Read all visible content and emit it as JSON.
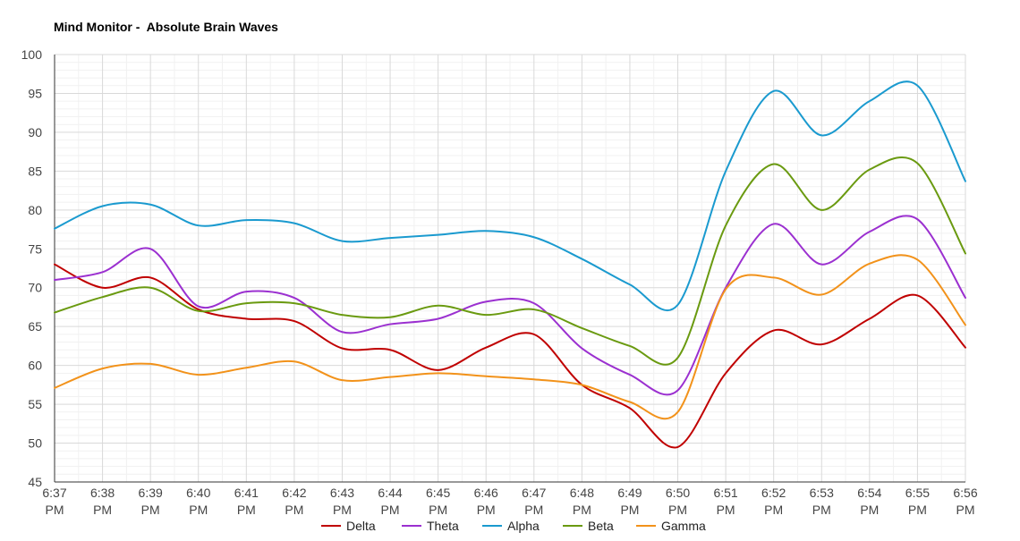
{
  "chart_data": {
    "type": "line",
    "title": "Mind Monitor -  Absolute Brain Waves",
    "xlabel": "",
    "ylabel": "",
    "ylim": [
      45,
      100
    ],
    "y_ticks": [
      "45",
      "50",
      "55",
      "60",
      "65",
      "70",
      "75",
      "80",
      "85",
      "90",
      "95",
      "100"
    ],
    "categories": [
      "6:37 PM",
      "6:38 PM",
      "6:39 PM",
      "6:40 PM",
      "6:41 PM",
      "6:42 PM",
      "6:43 PM",
      "6:44 PM",
      "6:45 PM",
      "6:46 PM",
      "6:47 PM",
      "6:48 PM",
      "6:49 PM",
      "6:50 PM",
      "6:51 PM",
      "6:52 PM",
      "6:53 PM",
      "6:54 PM",
      "6:55 PM",
      "6:56 PM"
    ],
    "x_tick_labels": [
      [
        "6:37",
        "PM"
      ],
      [
        "6:38",
        "PM"
      ],
      [
        "6:39",
        "PM"
      ],
      [
        "6:40",
        "PM"
      ],
      [
        "6:41",
        "PM"
      ],
      [
        "6:42",
        "PM"
      ],
      [
        "6:43",
        "PM"
      ],
      [
        "6:44",
        "PM"
      ],
      [
        "6:45",
        "PM"
      ],
      [
        "6:46",
        "PM"
      ],
      [
        "6:47",
        "PM"
      ],
      [
        "6:48",
        "PM"
      ],
      [
        "6:49",
        "PM"
      ],
      [
        "6:50",
        "PM"
      ],
      [
        "6:51",
        "PM"
      ],
      [
        "6:52",
        "PM"
      ],
      [
        "6:53",
        "PM"
      ],
      [
        "6:54",
        "PM"
      ],
      [
        "6:55",
        "PM"
      ],
      [
        "6:56",
        "PM"
      ]
    ],
    "grid": true,
    "minor_grid": true,
    "legend_position": "bottom",
    "series": [
      {
        "name": "Delta",
        "color": "#c00000",
        "values": [
          73.0,
          70.0,
          71.3,
          67.2,
          66.0,
          65.7,
          62.2,
          62.0,
          59.4,
          62.3,
          64.0,
          57.5,
          54.5,
          49.5,
          59.0,
          64.5,
          62.7,
          66.0,
          69.0,
          62.3
        ]
      },
      {
        "name": "Theta",
        "color": "#9b30d0",
        "values": [
          71.0,
          72.0,
          75.0,
          67.6,
          69.5,
          68.7,
          64.3,
          65.3,
          66.0,
          68.2,
          68.0,
          62.2,
          58.8,
          56.8,
          70.0,
          78.2,
          73.0,
          77.2,
          78.8,
          68.7
        ]
      },
      {
        "name": "Alpha",
        "color": "#1a9acf",
        "values": [
          77.6,
          80.5,
          80.7,
          78.0,
          78.7,
          78.3,
          76.0,
          76.4,
          76.8,
          77.3,
          76.5,
          73.7,
          70.4,
          67.8,
          85.0,
          95.3,
          89.6,
          94.0,
          96.0,
          83.7
        ]
      },
      {
        "name": "Beta",
        "color": "#6a9a10",
        "values": [
          66.8,
          68.8,
          70.0,
          67.0,
          68.0,
          68.0,
          66.5,
          66.2,
          67.7,
          66.5,
          67.2,
          64.8,
          62.5,
          61.0,
          78.0,
          85.9,
          80.0,
          85.2,
          86.0,
          74.4
        ]
      },
      {
        "name": "Gamma",
        "color": "#f2921a",
        "values": [
          57.1,
          59.6,
          60.2,
          58.8,
          59.7,
          60.5,
          58.1,
          58.5,
          59.0,
          58.6,
          58.2,
          57.5,
          55.3,
          54.0,
          69.8,
          71.3,
          69.1,
          73.1,
          73.6,
          65.2
        ]
      }
    ]
  }
}
